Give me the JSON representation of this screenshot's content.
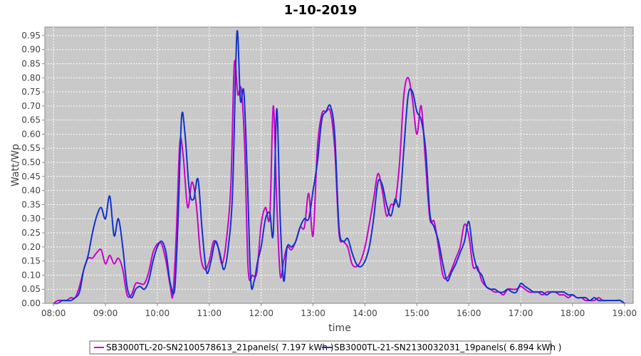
{
  "chart_data": {
    "type": "line",
    "title": "1-10-2019",
    "xlabel": "time",
    "ylabel": "Watt/Wp",
    "x_tick_labels": [
      "08:00",
      "09:00",
      "10:00",
      "11:00",
      "12:00",
      "13:00",
      "14:00",
      "15:00",
      "16:00",
      "17:00",
      "18:00",
      "19:00"
    ],
    "y_tick_labels": [
      "0.00",
      "0.05",
      "0.10",
      "0.15",
      "0.20",
      "0.25",
      "0.30",
      "0.35",
      "0.40",
      "0.45",
      "0.50",
      "0.55",
      "0.60",
      "0.65",
      "0.70",
      "0.75",
      "0.80",
      "0.85",
      "0.90",
      "0.95"
    ],
    "xlim": [
      "07:50",
      "19:10"
    ],
    "ylim": [
      0,
      0.98
    ],
    "grid": true,
    "legend_position": "bottom",
    "series": [
      {
        "name": "SB3000TL-20-SN2100578613_21panels( 7.197 kWh )",
        "color": "#cc00cc",
        "points": [
          [
            "08:00",
            0.0
          ],
          [
            "08:05",
            0.01
          ],
          [
            "08:10",
            0.01
          ],
          [
            "08:15",
            0.01
          ],
          [
            "08:20",
            0.02
          ],
          [
            "08:25",
            0.02
          ],
          [
            "08:30",
            0.06
          ],
          [
            "08:35",
            0.12
          ],
          [
            "08:40",
            0.16
          ],
          [
            "08:45",
            0.16
          ],
          [
            "08:50",
            0.18
          ],
          [
            "08:55",
            0.19
          ],
          [
            "09:00",
            0.14
          ],
          [
            "09:05",
            0.17
          ],
          [
            "09:10",
            0.14
          ],
          [
            "09:15",
            0.16
          ],
          [
            "09:20",
            0.12
          ],
          [
            "09:25",
            0.03
          ],
          [
            "09:30",
            0.03
          ],
          [
            "09:35",
            0.07
          ],
          [
            "09:40",
            0.07
          ],
          [
            "09:45",
            0.07
          ],
          [
            "09:50",
            0.11
          ],
          [
            "09:55",
            0.18
          ],
          [
            "10:00",
            0.21
          ],
          [
            "10:05",
            0.21
          ],
          [
            "10:10",
            0.15
          ],
          [
            "10:15",
            0.06
          ],
          [
            "10:18",
            0.03
          ],
          [
            "10:22",
            0.25
          ],
          [
            "10:26",
            0.57
          ],
          [
            "10:30",
            0.52
          ],
          [
            "10:35",
            0.34
          ],
          [
            "10:40",
            0.43
          ],
          [
            "10:45",
            0.35
          ],
          [
            "10:50",
            0.17
          ],
          [
            "10:55",
            0.12
          ],
          [
            "11:00",
            0.15
          ],
          [
            "11:05",
            0.22
          ],
          [
            "11:10",
            0.2
          ],
          [
            "11:15",
            0.14
          ],
          [
            "11:20",
            0.23
          ],
          [
            "11:25",
            0.42
          ],
          [
            "11:29",
            0.85
          ],
          [
            "11:33",
            0.74
          ],
          [
            "11:37",
            0.76
          ],
          [
            "11:41",
            0.55
          ],
          [
            "11:45",
            0.12
          ],
          [
            "11:50",
            0.1
          ],
          [
            "11:55",
            0.11
          ],
          [
            "12:00",
            0.28
          ],
          [
            "12:05",
            0.34
          ],
          [
            "12:10",
            0.31
          ],
          [
            "12:14",
            0.7
          ],
          [
            "12:18",
            0.36
          ],
          [
            "12:22",
            0.1
          ],
          [
            "12:26",
            0.15
          ],
          [
            "12:30",
            0.2
          ],
          [
            "12:35",
            0.19
          ],
          [
            "12:40",
            0.22
          ],
          [
            "12:45",
            0.27
          ],
          [
            "12:50",
            0.27
          ],
          [
            "12:55",
            0.39
          ],
          [
            "13:00",
            0.24
          ],
          [
            "13:05",
            0.55
          ],
          [
            "13:10",
            0.67
          ],
          [
            "13:15",
            0.68
          ],
          [
            "13:20",
            0.68
          ],
          [
            "13:25",
            0.55
          ],
          [
            "13:30",
            0.25
          ],
          [
            "13:35",
            0.22
          ],
          [
            "13:40",
            0.2
          ],
          [
            "13:45",
            0.14
          ],
          [
            "13:50",
            0.13
          ],
          [
            "13:55",
            0.15
          ],
          [
            "14:00",
            0.2
          ],
          [
            "14:05",
            0.28
          ],
          [
            "14:10",
            0.37
          ],
          [
            "14:15",
            0.46
          ],
          [
            "14:20",
            0.4
          ],
          [
            "14:25",
            0.31
          ],
          [
            "14:30",
            0.35
          ],
          [
            "14:35",
            0.36
          ],
          [
            "14:40",
            0.5
          ],
          [
            "14:45",
            0.74
          ],
          [
            "14:50",
            0.8
          ],
          [
            "14:55",
            0.72
          ],
          [
            "15:00",
            0.6
          ],
          [
            "15:05",
            0.7
          ],
          [
            "15:10",
            0.5
          ],
          [
            "15:15",
            0.3
          ],
          [
            "15:20",
            0.29
          ],
          [
            "15:25",
            0.2
          ],
          [
            "15:30",
            0.1
          ],
          [
            "15:35",
            0.09
          ],
          [
            "15:40",
            0.12
          ],
          [
            "15:45",
            0.16
          ],
          [
            "15:50",
            0.2
          ],
          [
            "15:55",
            0.28
          ],
          [
            "16:00",
            0.24
          ],
          [
            "16:05",
            0.13
          ],
          [
            "16:10",
            0.13
          ],
          [
            "16:15",
            0.08
          ],
          [
            "16:20",
            0.06
          ],
          [
            "16:25",
            0.05
          ],
          [
            "16:30",
            0.04
          ],
          [
            "16:35",
            0.04
          ],
          [
            "16:40",
            0.03
          ],
          [
            "16:45",
            0.05
          ],
          [
            "16:50",
            0.05
          ],
          [
            "16:55",
            0.05
          ],
          [
            "17:00",
            0.06
          ],
          [
            "17:05",
            0.05
          ],
          [
            "17:10",
            0.04
          ],
          [
            "17:15",
            0.04
          ],
          [
            "17:20",
            0.04
          ],
          [
            "17:25",
            0.03
          ],
          [
            "17:30",
            0.04
          ],
          [
            "17:35",
            0.04
          ],
          [
            "17:40",
            0.04
          ],
          [
            "17:45",
            0.03
          ],
          [
            "17:50",
            0.03
          ],
          [
            "17:55",
            0.02
          ],
          [
            "18:00",
            0.03
          ],
          [
            "18:05",
            0.02
          ],
          [
            "18:10",
            0.02
          ],
          [
            "18:15",
            0.01
          ],
          [
            "18:20",
            0.01
          ],
          [
            "18:25",
            0.01
          ],
          [
            "18:30",
            0.02
          ],
          [
            "18:35",
            0.01
          ],
          [
            "18:40",
            0.01
          ],
          [
            "18:45",
            0.01
          ],
          [
            "18:50",
            0.01
          ],
          [
            "18:55",
            0.01
          ],
          [
            "19:00",
            0.0
          ]
        ]
      },
      {
        "name": "SB3000TL-21-SN2130032031_19panels( 6.894 kWh )",
        "color": "#1133cc",
        "points": [
          [
            "08:00",
            0.0
          ],
          [
            "08:05",
            0.0
          ],
          [
            "08:10",
            0.01
          ],
          [
            "08:15",
            0.01
          ],
          [
            "08:20",
            0.01
          ],
          [
            "08:25",
            0.02
          ],
          [
            "08:30",
            0.04
          ],
          [
            "08:35",
            0.12
          ],
          [
            "08:40",
            0.17
          ],
          [
            "08:45",
            0.25
          ],
          [
            "08:50",
            0.31
          ],
          [
            "08:55",
            0.34
          ],
          [
            "09:00",
            0.3
          ],
          [
            "09:05",
            0.38
          ],
          [
            "09:10",
            0.24
          ],
          [
            "09:15",
            0.3
          ],
          [
            "09:20",
            0.2
          ],
          [
            "09:25",
            0.06
          ],
          [
            "09:30",
            0.02
          ],
          [
            "09:35",
            0.05
          ],
          [
            "09:40",
            0.06
          ],
          [
            "09:45",
            0.05
          ],
          [
            "09:50",
            0.08
          ],
          [
            "09:55",
            0.15
          ],
          [
            "10:00",
            0.2
          ],
          [
            "10:05",
            0.22
          ],
          [
            "10:10",
            0.18
          ],
          [
            "10:15",
            0.07
          ],
          [
            "10:20",
            0.05
          ],
          [
            "10:24",
            0.3
          ],
          [
            "10:28",
            0.66
          ],
          [
            "10:32",
            0.6
          ],
          [
            "10:37",
            0.4
          ],
          [
            "10:42",
            0.37
          ],
          [
            "10:47",
            0.44
          ],
          [
            "10:52",
            0.25
          ],
          [
            "10:57",
            0.11
          ],
          [
            "11:02",
            0.15
          ],
          [
            "11:07",
            0.22
          ],
          [
            "11:12",
            0.18
          ],
          [
            "11:17",
            0.12
          ],
          [
            "11:22",
            0.2
          ],
          [
            "11:27",
            0.4
          ],
          [
            "11:32",
            0.96
          ],
          [
            "11:36",
            0.72
          ],
          [
            "11:40",
            0.75
          ],
          [
            "11:44",
            0.45
          ],
          [
            "11:48",
            0.08
          ],
          [
            "11:52",
            0.08
          ],
          [
            "11:56",
            0.15
          ],
          [
            "12:00",
            0.2
          ],
          [
            "12:05",
            0.3
          ],
          [
            "12:10",
            0.32
          ],
          [
            "12:14",
            0.25
          ],
          [
            "12:18",
            0.69
          ],
          [
            "12:22",
            0.3
          ],
          [
            "12:26",
            0.08
          ],
          [
            "12:30",
            0.2
          ],
          [
            "12:35",
            0.2
          ],
          [
            "12:40",
            0.22
          ],
          [
            "12:45",
            0.27
          ],
          [
            "12:50",
            0.3
          ],
          [
            "12:55",
            0.3
          ],
          [
            "13:00",
            0.4
          ],
          [
            "13:05",
            0.5
          ],
          [
            "13:10",
            0.65
          ],
          [
            "13:15",
            0.68
          ],
          [
            "13:20",
            0.7
          ],
          [
            "13:25",
            0.6
          ],
          [
            "13:30",
            0.27
          ],
          [
            "13:35",
            0.22
          ],
          [
            "13:40",
            0.23
          ],
          [
            "13:45",
            0.18
          ],
          [
            "13:50",
            0.14
          ],
          [
            "13:55",
            0.13
          ],
          [
            "14:00",
            0.15
          ],
          [
            "14:05",
            0.2
          ],
          [
            "14:10",
            0.3
          ],
          [
            "14:15",
            0.43
          ],
          [
            "14:20",
            0.42
          ],
          [
            "14:25",
            0.35
          ],
          [
            "14:30",
            0.31
          ],
          [
            "14:35",
            0.37
          ],
          [
            "14:40",
            0.35
          ],
          [
            "14:45",
            0.55
          ],
          [
            "14:50",
            0.74
          ],
          [
            "14:55",
            0.75
          ],
          [
            "15:00",
            0.68
          ],
          [
            "15:05",
            0.65
          ],
          [
            "15:10",
            0.55
          ],
          [
            "15:15",
            0.32
          ],
          [
            "15:20",
            0.27
          ],
          [
            "15:25",
            0.22
          ],
          [
            "15:30",
            0.14
          ],
          [
            "15:35",
            0.08
          ],
          [
            "15:40",
            0.11
          ],
          [
            "15:45",
            0.14
          ],
          [
            "15:50",
            0.18
          ],
          [
            "15:55",
            0.22
          ],
          [
            "16:00",
            0.29
          ],
          [
            "16:05",
            0.18
          ],
          [
            "16:10",
            0.12
          ],
          [
            "16:15",
            0.1
          ],
          [
            "16:20",
            0.06
          ],
          [
            "16:25",
            0.05
          ],
          [
            "16:30",
            0.05
          ],
          [
            "16:35",
            0.04
          ],
          [
            "16:40",
            0.04
          ],
          [
            "16:45",
            0.05
          ],
          [
            "16:50",
            0.04
          ],
          [
            "16:55",
            0.04
          ],
          [
            "17:00",
            0.07
          ],
          [
            "17:05",
            0.06
          ],
          [
            "17:10",
            0.05
          ],
          [
            "17:15",
            0.04
          ],
          [
            "17:20",
            0.04
          ],
          [
            "17:25",
            0.04
          ],
          [
            "17:30",
            0.03
          ],
          [
            "17:35",
            0.04
          ],
          [
            "17:40",
            0.04
          ],
          [
            "17:45",
            0.04
          ],
          [
            "17:50",
            0.04
          ],
          [
            "17:55",
            0.03
          ],
          [
            "18:00",
            0.03
          ],
          [
            "18:05",
            0.02
          ],
          [
            "18:10",
            0.02
          ],
          [
            "18:15",
            0.02
          ],
          [
            "18:20",
            0.01
          ],
          [
            "18:25",
            0.02
          ],
          [
            "18:30",
            0.01
          ],
          [
            "18:35",
            0.01
          ],
          [
            "18:40",
            0.01
          ],
          [
            "18:45",
            0.01
          ],
          [
            "18:50",
            0.01
          ],
          [
            "18:55",
            0.01
          ],
          [
            "19:00",
            0.0
          ]
        ]
      }
    ]
  }
}
